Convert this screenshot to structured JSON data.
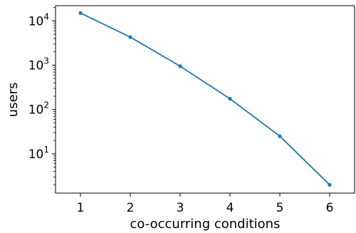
{
  "chart_data": {
    "type": "line",
    "title": "",
    "xlabel": "co-occurring conditions",
    "ylabel": "users",
    "yscale": "log",
    "x": [
      1,
      2,
      3,
      4,
      5,
      6
    ],
    "series": [
      {
        "values": [
          15000,
          4300,
          950,
          175,
          25,
          2
        ],
        "color": "#1f77b4"
      }
    ],
    "xlim": [
      0.5,
      6.5
    ],
    "ylim": [
      1.3,
      22000
    ],
    "xticks": [
      "1",
      "2",
      "3",
      "4",
      "5",
      "6"
    ],
    "yticks": [
      {
        "value": 10,
        "base": "10",
        "exp": "1"
      },
      {
        "value": 100,
        "base": "10",
        "exp": "2"
      },
      {
        "value": 1000,
        "base": "10",
        "exp": "3"
      },
      {
        "value": 10000,
        "base": "10",
        "exp": "4"
      }
    ],
    "grid": false,
    "legend": "none"
  }
}
